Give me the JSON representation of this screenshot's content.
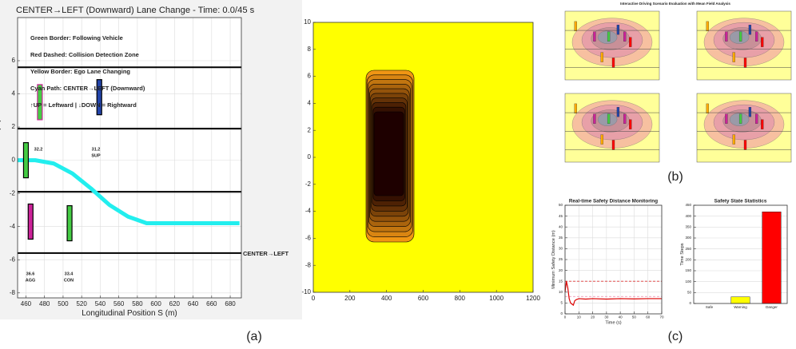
{
  "figure": {
    "labels": [
      "(a)",
      "(b)",
      "(c)"
    ]
  },
  "chart_data": [
    {
      "type": "scene",
      "title": "CENTER→LEFT (Downward) Lane Change - Time: 0.0/45 s",
      "xlabel": "Longitudinal Position S (m)",
      "ylabel": "Lateral Position D (m)",
      "xlim": [
        451,
        692
      ],
      "ylim": [
        -8.3,
        8.6
      ],
      "xticks": [
        460,
        480,
        500,
        520,
        540,
        560,
        580,
        600,
        620,
        640,
        660,
        680
      ],
      "yticks": [
        -8,
        -6,
        -4,
        -2,
        0,
        2,
        4,
        6
      ],
      "grid": true,
      "lane_lines": [
        5.6,
        1.9,
        -1.9,
        -5.6
      ],
      "path": {
        "color": "#22eeee",
        "x": [
          451,
          470,
          490,
          510,
          530,
          550,
          570,
          590,
          610,
          690
        ],
        "y": [
          0,
          0,
          -0.2,
          -0.8,
          -1.7,
          -2.7,
          -3.4,
          -3.8,
          -3.8,
          -3.8
        ]
      },
      "vehicles": [
        {
          "x": 460,
          "y": 0,
          "fill": "#44cc44",
          "border": "#000000"
        },
        {
          "x": 475,
          "y": 3.5,
          "fill": "#44cc44",
          "border": "#cc2299"
        },
        {
          "x": 539,
          "y": 3.8,
          "fill": "#2244aa",
          "border": "#000000"
        },
        {
          "x": 465,
          "y": -3.7,
          "fill": "#cc2299",
          "border": "#000000"
        },
        {
          "x": 507,
          "y": -3.8,
          "fill": "#44cc44",
          "border": "#000000"
        }
      ],
      "legend_texts": [
        {
          "text": "Green Border: Following Vehicle",
          "color": "#33cc33"
        },
        {
          "text": "Red Dashed: Collision Detection Zone",
          "color": "#e03030"
        },
        {
          "text": "Yellow Border: Ego Lane Changing",
          "color": "#e6d600"
        },
        {
          "text": "Cyan Path: CENTER→LEFT (Downward)",
          "color": "#22dddd"
        },
        {
          "text": "↑UP = Leftward | ↓DOWN = Rightward",
          "color": "#2222cc"
        }
      ],
      "path_label": "CENTER→LEFT",
      "vehicle_labels": [
        "32.2",
        "31.2",
        "SUP",
        "36.6",
        "AGG",
        "33.4",
        "CON"
      ]
    },
    {
      "type": "contour",
      "xlim": [
        0,
        1200
      ],
      "ylim": [
        -10,
        10
      ],
      "xticks": [
        0,
        200,
        400,
        600,
        800,
        1000,
        1200
      ],
      "yticks": [
        -10,
        -8,
        -6,
        -4,
        -2,
        0,
        2,
        4,
        6,
        8,
        10
      ],
      "background": "#ffff00"
    },
    {
      "type": "thumbnails",
      "title": "Interactive Driving Scenario Evaluation with Mean Field Analysis"
    },
    {
      "type": "line",
      "title": "Real-time Safety Distance Monitoring",
      "xlabel": "Time (s)",
      "ylabel": "Minimum Safety Distance (m)",
      "xlim": [
        0,
        70
      ],
      "ylim": [
        0,
        50
      ],
      "xticks": [
        0,
        10,
        20,
        30,
        40,
        50,
        60,
        70
      ],
      "yticks": [
        0,
        5,
        10,
        15,
        20,
        25,
        30,
        35,
        40,
        45,
        50
      ],
      "x": [
        0,
        1,
        2,
        3,
        4,
        5,
        6,
        7,
        8,
        10,
        15,
        20,
        30,
        40,
        50,
        60,
        70
      ],
      "values": [
        10,
        15,
        12,
        7,
        5,
        4.5,
        4,
        6,
        6.5,
        7,
        6.8,
        7,
        6.8,
        7,
        6.9,
        7,
        7
      ],
      "color": "#dd0000",
      "thresholds": [
        {
          "value": 15,
          "color": "#dd3333"
        },
        {
          "value": 8,
          "color": "#ee88aa"
        }
      ],
      "grid": true
    },
    {
      "type": "bar",
      "title": "Safety State Statistics",
      "ylabel": "Time Steps",
      "categories": [
        "Safe",
        "Warning",
        "Danger"
      ],
      "values": [
        0,
        30,
        420
      ],
      "colors": [
        "#00aa00",
        "#ffff00",
        "#ff0000"
      ],
      "ylim": [
        0,
        450
      ],
      "yticks": [
        0,
        50,
        100,
        150,
        200,
        250,
        300,
        350,
        400,
        450
      ],
      "grid": true
    }
  ]
}
